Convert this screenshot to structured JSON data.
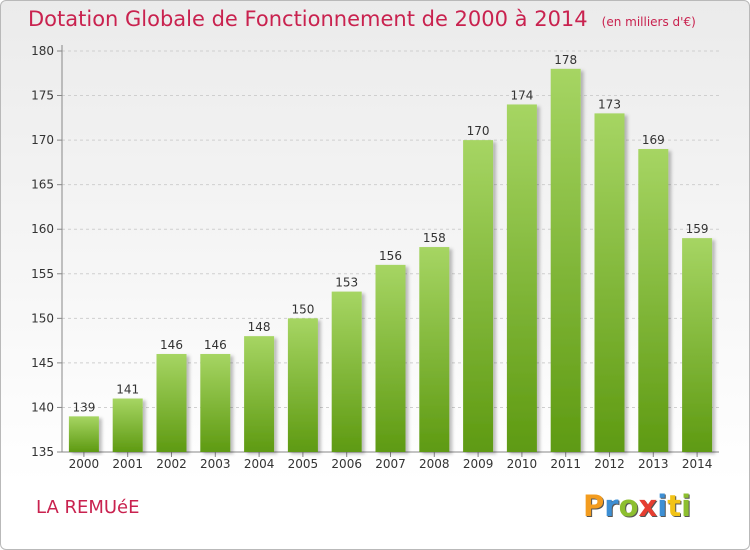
{
  "title": "Dotation Globale de Fonctionnement de 2000 à 2014",
  "unit_note": "(en milliers d'€)",
  "commune": "LA REMUéE",
  "logo": {
    "text": "Proxiti",
    "letter_colors": [
      "#f39c1f",
      "#3d8fd4",
      "#8dbf2f",
      "#e63e31",
      "#3d8fd4",
      "#f2c316",
      "#8dbf2f"
    ]
  },
  "colors": {
    "title": "#c9224f",
    "bar_light": "#a6d563",
    "bar_dark": "#5e9a12",
    "axis": "#888888",
    "grid": "#cfcfcf"
  },
  "chart_data": {
    "type": "bar",
    "categories": [
      "2000",
      "2001",
      "2002",
      "2003",
      "2004",
      "2005",
      "2006",
      "2007",
      "2008",
      "2009",
      "2010",
      "2011",
      "2012",
      "2013",
      "2014"
    ],
    "values": [
      139,
      141,
      146,
      146,
      148,
      150,
      153,
      156,
      158,
      170,
      174,
      178,
      173,
      169,
      159
    ],
    "ylim": [
      135,
      180
    ],
    "yticks": [
      135,
      140,
      145,
      150,
      155,
      160,
      165,
      170,
      175,
      180
    ],
    "grid": "horizontal-dashed",
    "data_labels": true
  }
}
